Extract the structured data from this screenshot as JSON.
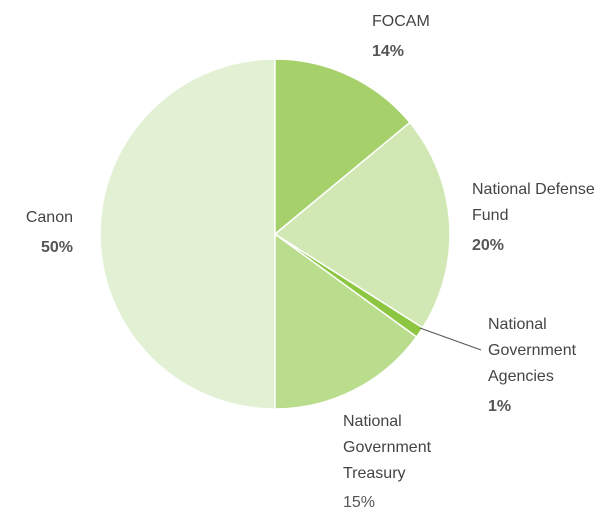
{
  "chart_data": {
    "type": "pie",
    "categories": [
      "FOCAM",
      "National Defense Fund",
      "National Government Agencies",
      "National Government Treasury",
      "Canon"
    ],
    "values": [
      14,
      20,
      1,
      15,
      50
    ],
    "value_labels": [
      "14%",
      "20%",
      "1%",
      "15%",
      "50%"
    ],
    "colors": [
      "#a5d06a",
      "#d1e8b4",
      "#8dc641",
      "#badd8d",
      "#e2f0d4"
    ]
  }
}
